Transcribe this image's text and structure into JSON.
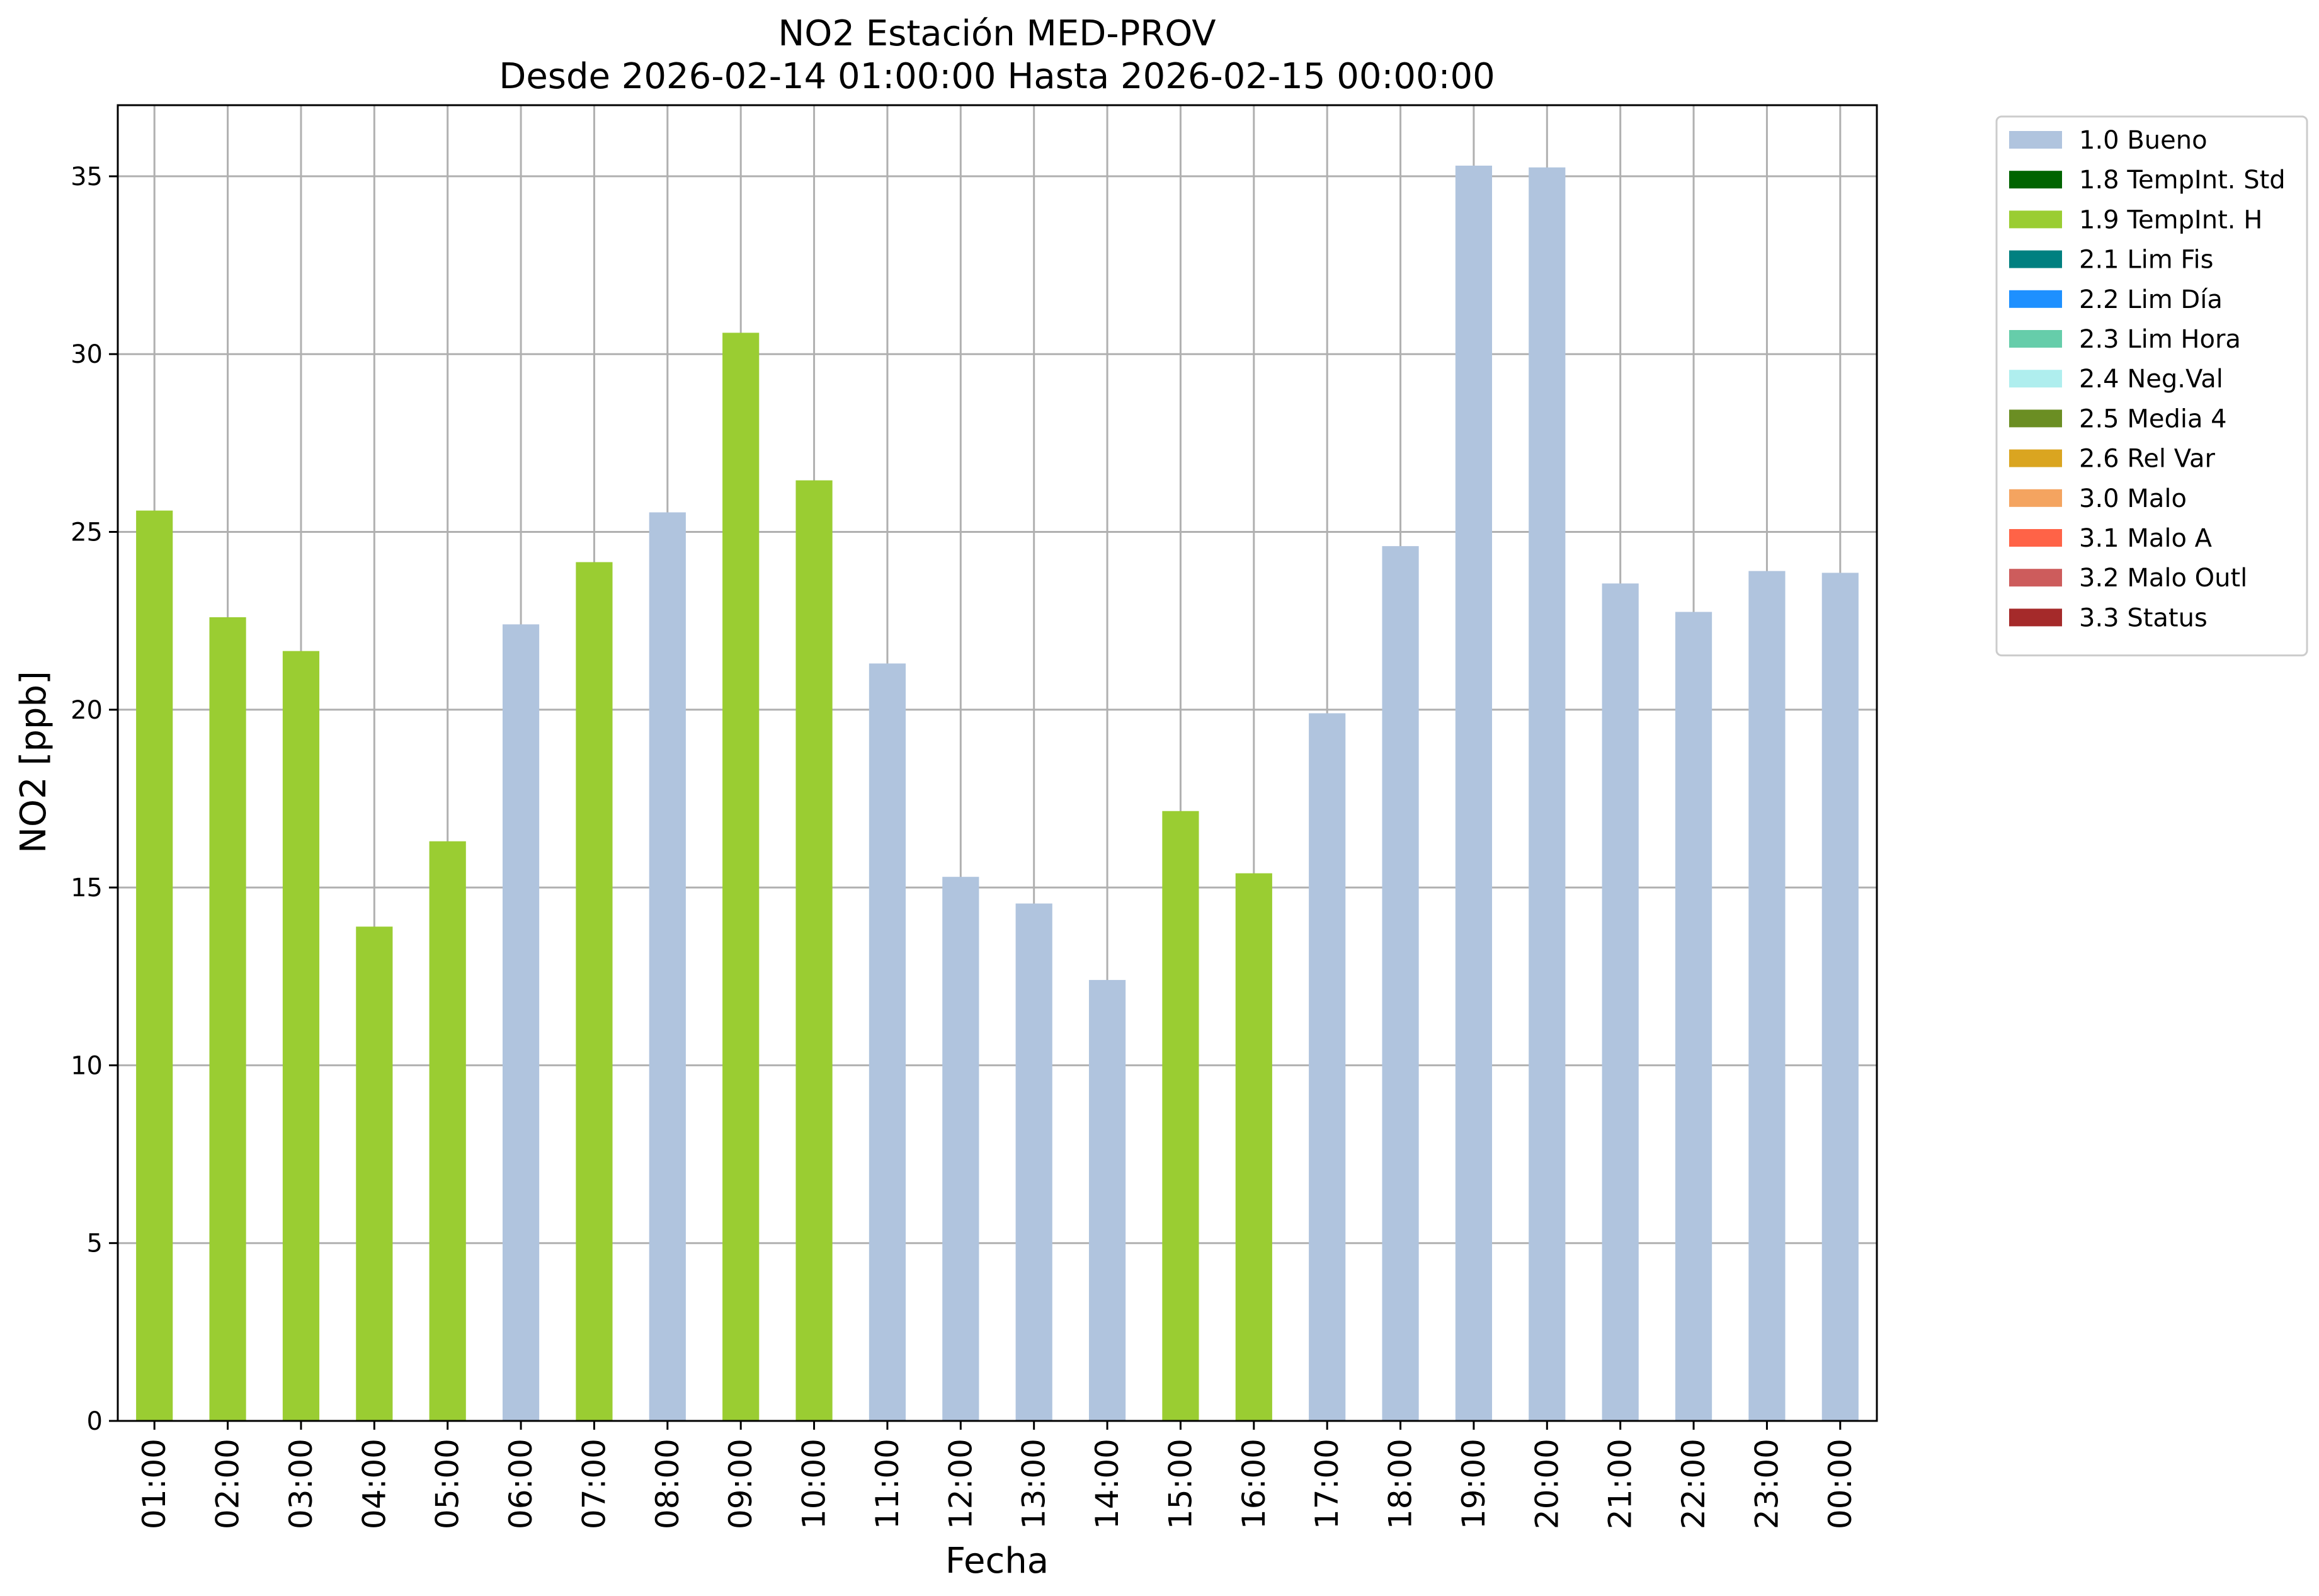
{
  "chart_data": {
    "type": "bar",
    "title": "NO2 Estación MED-PROV",
    "subtitle": "Desde 2026-02-14 01:00:00 Hasta 2026-02-15 00:00:00",
    "xlabel": "Fecha",
    "ylabel": "NO2 [ppb]",
    "ylim": [
      0,
      37
    ],
    "yticks": [
      0,
      5,
      10,
      15,
      20,
      25,
      30,
      35
    ],
    "grid": true,
    "legend_position": "outside-top-right",
    "categories": [
      "01:00",
      "02:00",
      "03:00",
      "04:00",
      "05:00",
      "06:00",
      "07:00",
      "08:00",
      "09:00",
      "10:00",
      "11:00",
      "12:00",
      "13:00",
      "14:00",
      "15:00",
      "16:00",
      "17:00",
      "18:00",
      "19:00",
      "20:00",
      "21:00",
      "22:00",
      "23:00",
      "00:00"
    ],
    "values": [
      25.6,
      22.6,
      21.65,
      13.9,
      16.3,
      22.4,
      24.15,
      25.55,
      30.6,
      26.45,
      21.3,
      15.3,
      14.55,
      12.4,
      17.15,
      15.4,
      19.9,
      24.6,
      35.3,
      35.25,
      23.55,
      22.75,
      23.9,
      23.85
    ],
    "flags": [
      "1.9 TempInt. H",
      "1.9 TempInt. H",
      "1.9 TempInt. H",
      "1.9 TempInt. H",
      "1.9 TempInt. H",
      "1.0 Bueno",
      "1.9 TempInt. H",
      "1.0 Bueno",
      "1.9 TempInt. H",
      "1.9 TempInt. H",
      "1.0 Bueno",
      "1.0 Bueno",
      "1.0 Bueno",
      "1.0 Bueno",
      "1.9 TempInt. H",
      "1.9 TempInt. H",
      "1.0 Bueno",
      "1.0 Bueno",
      "1.0 Bueno",
      "1.0 Bueno",
      "1.0 Bueno",
      "1.0 Bueno",
      "1.0 Bueno",
      "1.0 Bueno"
    ],
    "legend": [
      {
        "label": "1.0 Bueno",
        "color": "#b0c4de"
      },
      {
        "label": "1.8 TempInt. Std",
        "color": "#006400"
      },
      {
        "label": "1.9 TempInt. H",
        "color": "#9acd32"
      },
      {
        "label": "2.1 Lim Fis",
        "color": "#008080"
      },
      {
        "label": "2.2 Lim Día",
        "color": "#1e90ff"
      },
      {
        "label": "2.3 Lim Hora",
        "color": "#66cdaa"
      },
      {
        "label": "2.4 Neg.Val",
        "color": "#afeeee"
      },
      {
        "label": "2.5 Media 4",
        "color": "#6b8e23"
      },
      {
        "label": "2.6 Rel Var",
        "color": "#daa520"
      },
      {
        "label": "3.0 Malo",
        "color": "#f4a460"
      },
      {
        "label": "3.1 Malo A",
        "color": "#ff6347"
      },
      {
        "label": "3.2 Malo Outl",
        "color": "#cd5c5c"
      },
      {
        "label": "3.3 Status",
        "color": "#a52a2a"
      }
    ]
  }
}
